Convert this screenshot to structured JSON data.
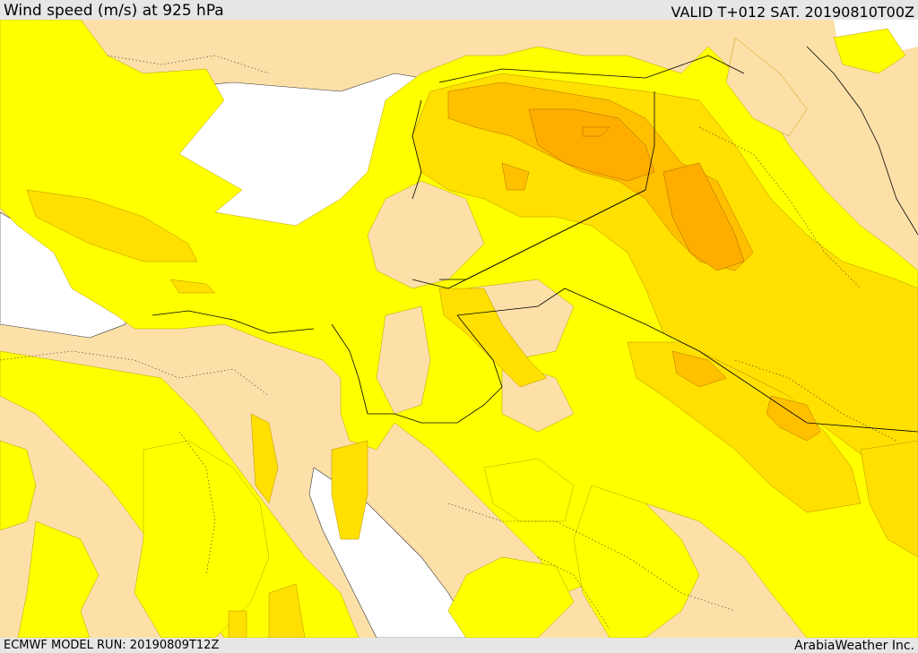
{
  "header": {
    "title": "Wind speed (m/s) at 925 hPa",
    "valid_time": "VALID T+012 SAT. 20190810T00Z"
  },
  "footer": {
    "model_run": "ECMWF MODEL RUN: 20190809T12Z",
    "provider": "ArabiaWeather Inc."
  },
  "map_colors": {
    "land_calm": "#fde0a8",
    "water": "#ffffff",
    "wind_band_1": "#ffff00",
    "wind_band_2": "#ffe000",
    "wind_band_3": "#ffc800",
    "wind_band_4": "#ffb000",
    "borders": "#000000"
  }
}
